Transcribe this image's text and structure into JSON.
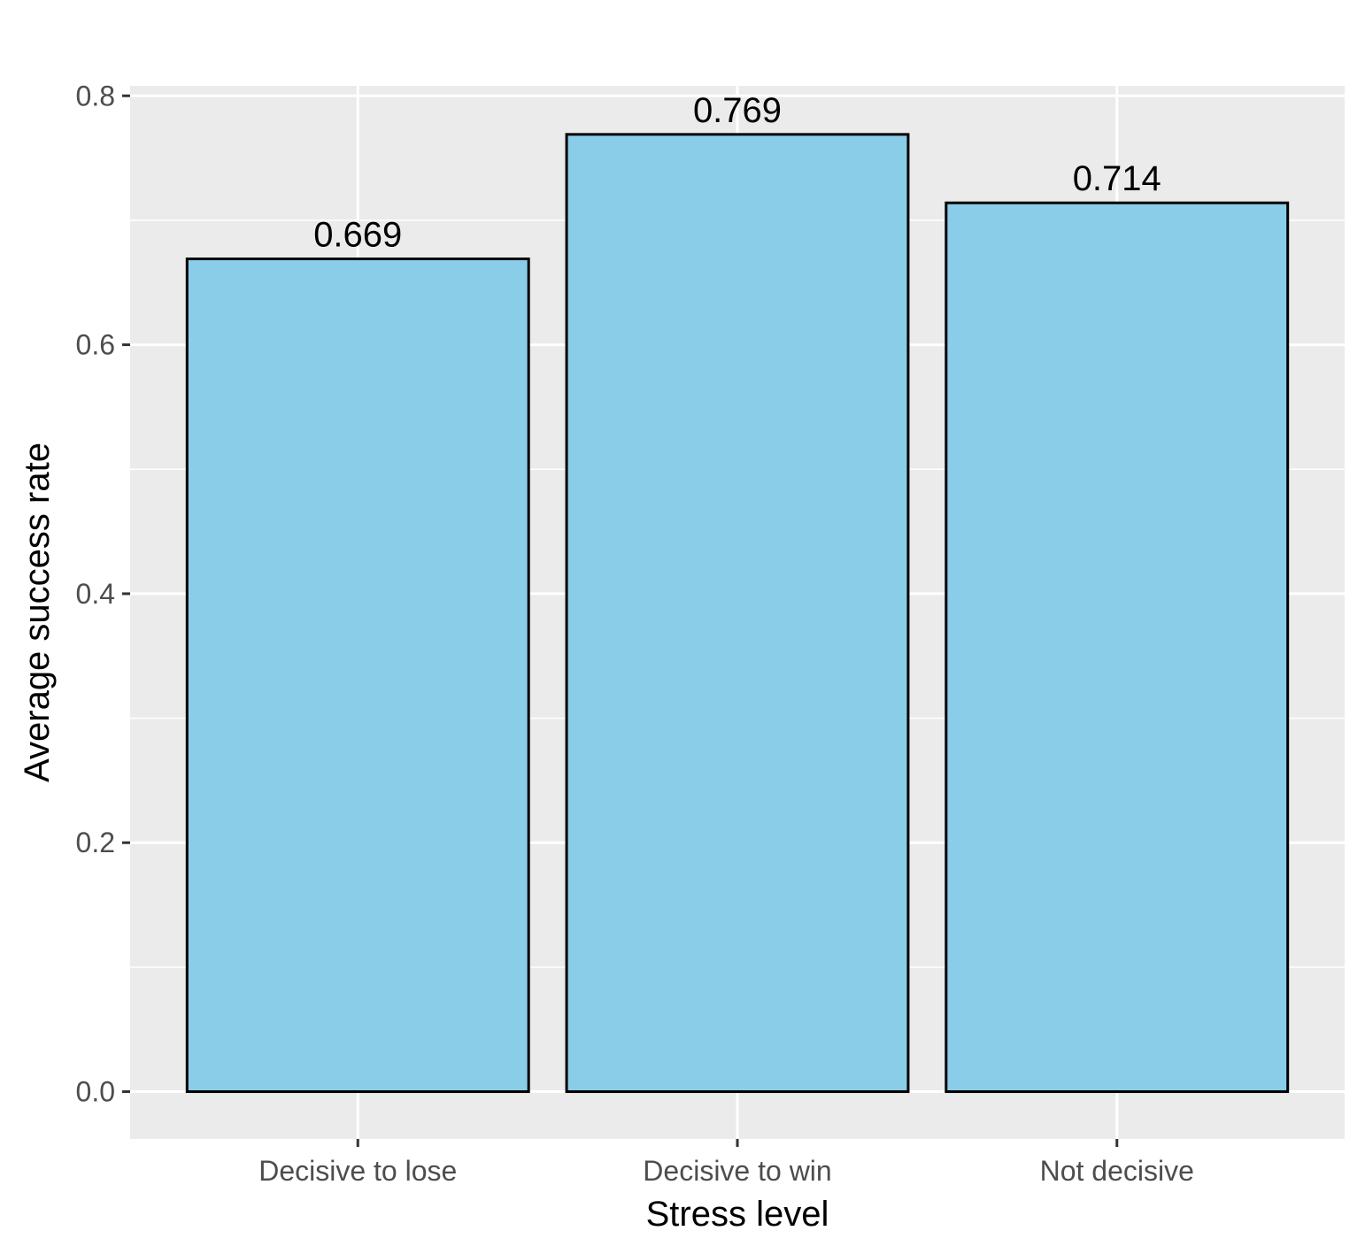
{
  "chart_data": {
    "type": "bar",
    "categories": [
      "Decisive to lose",
      "Decisive to win",
      "Not decisive"
    ],
    "values": [
      0.669,
      0.769,
      0.714
    ],
    "value_labels": [
      "0.669",
      "0.769",
      "0.714"
    ],
    "title": "",
    "xlabel": "Stress level",
    "ylabel": "Average success rate",
    "ylim": [
      -0.038,
      0.808
    ],
    "y_ticks": [
      0.0,
      0.2,
      0.4,
      0.6,
      0.8
    ],
    "y_tick_labels": [
      "0.0",
      "0.2",
      "0.4",
      "0.6",
      "0.8"
    ],
    "grid": true,
    "legend": "none",
    "colors": {
      "bar_fill": "#89CDE9",
      "bar_stroke": "#000000",
      "panel_background": "#EBEBEB",
      "grid_line": "#FFFFFF",
      "tick_text": "#4D4D4D"
    }
  }
}
